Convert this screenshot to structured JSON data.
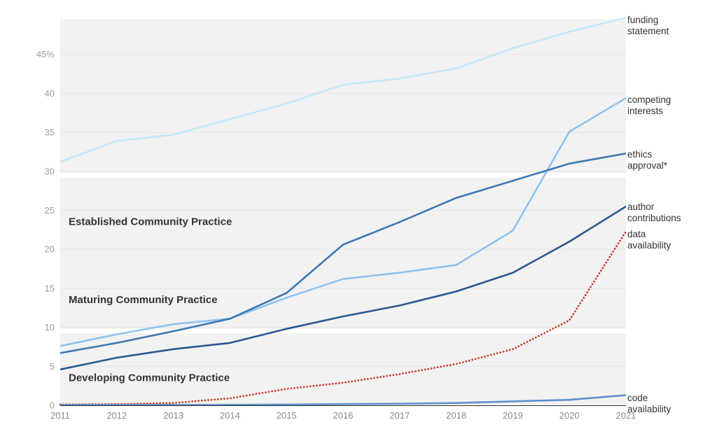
{
  "chart_data": {
    "type": "line",
    "x": [
      2011,
      2012,
      2013,
      2014,
      2015,
      2016,
      2017,
      2018,
      2019,
      2020,
      2021
    ],
    "ylim": [
      0,
      50
    ],
    "xlim": [
      2011,
      2021
    ],
    "y_ticks": [
      {
        "value": 0,
        "label": "0"
      },
      {
        "value": 5,
        "label": "5"
      },
      {
        "value": 10,
        "label": "10"
      },
      {
        "value": 15,
        "label": "15"
      },
      {
        "value": 20,
        "label": "20"
      },
      {
        "value": 25,
        "label": "25"
      },
      {
        "value": 30,
        "label": "30"
      },
      {
        "value": 35,
        "label": "35"
      },
      {
        "value": 40,
        "label": "40"
      },
      {
        "value": 45,
        "label": "45%"
      }
    ],
    "x_ticks": [
      "2011",
      "2012",
      "2013",
      "2014",
      "2015",
      "2016",
      "2017",
      "2018",
      "2019",
      "2020",
      "2021"
    ],
    "grid": true,
    "bands": [
      {
        "label": "Developing Community Practice",
        "range": [
          0,
          9.2
        ],
        "label_y": 3.1
      },
      {
        "label": "Maturing Community Practice",
        "range": [
          9.8,
          29.2
        ],
        "label_y": 13.1
      },
      {
        "label": "Established Community Practice",
        "range": [
          29.8,
          49.5
        ],
        "label_y": 23.1
      }
    ],
    "series": [
      {
        "name": "funding statement",
        "label_lines": [
          "funding",
          "statement"
        ],
        "color": "#c5e9fb",
        "dashed": false,
        "values": [
          31.2,
          33.9,
          34.7,
          36.7,
          38.7,
          41.1,
          41.9,
          43.2,
          45.8,
          47.9,
          49.7
        ]
      },
      {
        "name": "competing interests",
        "label_lines": [
          "competing",
          "interests"
        ],
        "color": "#8ec2f0",
        "dashed": false,
        "values": [
          7.6,
          9.1,
          10.4,
          11.1,
          13.8,
          16.2,
          17.0,
          18.0,
          22.4,
          35.1,
          39.4
        ]
      },
      {
        "name": "ethics approval*",
        "label_lines": [
          "ethics",
          "approval*"
        ],
        "color": "#3d78b3",
        "dashed": false,
        "values": [
          6.7,
          8.0,
          9.5,
          11.1,
          14.4,
          20.6,
          23.5,
          26.6,
          28.8,
          31.0,
          32.3
        ]
      },
      {
        "name": "author contributions",
        "label_lines": [
          "author",
          "contributions"
        ],
        "color": "#2b5791",
        "dashed": false,
        "values": [
          4.6,
          6.1,
          7.2,
          8.0,
          9.8,
          11.4,
          12.8,
          14.6,
          17.0,
          21.0,
          25.5
        ]
      },
      {
        "name": "data availability",
        "label_lines": [
          "data",
          "availability"
        ],
        "color": "#c8402f",
        "dashed": true,
        "values": [
          0.1,
          0.15,
          0.3,
          0.9,
          2.1,
          2.9,
          4.0,
          5.3,
          7.2,
          10.9,
          22.3
        ]
      },
      {
        "name": "code availability",
        "label_lines": [
          "code",
          "availability"
        ],
        "color": "#5b8fcf",
        "dashed": false,
        "values": [
          0.05,
          0.05,
          0.05,
          0.05,
          0.1,
          0.15,
          0.2,
          0.3,
          0.5,
          0.7,
          1.3
        ]
      }
    ]
  }
}
